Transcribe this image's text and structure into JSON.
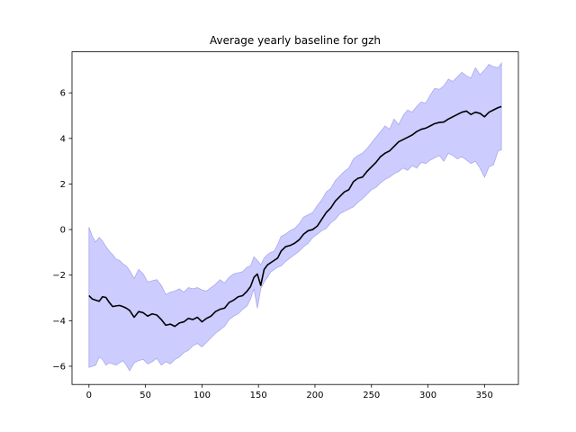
{
  "chart_data": {
    "type": "line",
    "title": "Average yearly baseline for gzh",
    "xlabel": "",
    "ylabel": "",
    "xlim": [
      -15,
      380
    ],
    "ylim": [
      -6.8,
      7.8
    ],
    "xticks": [
      0,
      50,
      100,
      150,
      200,
      250,
      300,
      350
    ],
    "yticks": [
      -6,
      -4,
      -2,
      0,
      2,
      4,
      6
    ],
    "grid": false,
    "legend": "none",
    "colors": {
      "mean_line": "#000000",
      "band_fill": "#ccccff",
      "band_edge": "#aaaaee"
    },
    "series": [
      {
        "kind": "line",
        "x": [
          0,
          3,
          6,
          9,
          12,
          15,
          18,
          21,
          24,
          27,
          30,
          33,
          36,
          40,
          44,
          48,
          52,
          56,
          60,
          64,
          68,
          72,
          76,
          80,
          84,
          88,
          92,
          96,
          100,
          104,
          108,
          112,
          116,
          120,
          124,
          128,
          132,
          136,
          140,
          143,
          146,
          149,
          152,
          155,
          158,
          161,
          164,
          167,
          170,
          174,
          178,
          182,
          186,
          190,
          194,
          198,
          202,
          206,
          210,
          214,
          218,
          222,
          226,
          230,
          234,
          238,
          242,
          246,
          250,
          254,
          258,
          262,
          266,
          270,
          274,
          278,
          282,
          286,
          290,
          294,
          298,
          302,
          306,
          310,
          314,
          318,
          322,
          326,
          330,
          334,
          338,
          342,
          346,
          350,
          354,
          358,
          362,
          365
        ],
        "values": [
          -2.9,
          -3.05,
          -3.1,
          -3.15,
          -2.95,
          -2.98,
          -3.2,
          -3.38,
          -3.35,
          -3.33,
          -3.38,
          -3.45,
          -3.55,
          -3.85,
          -3.6,
          -3.65,
          -3.8,
          -3.7,
          -3.75,
          -3.95,
          -4.2,
          -4.15,
          -4.25,
          -4.1,
          -4.05,
          -3.9,
          -3.95,
          -3.85,
          -4.05,
          -3.9,
          -3.8,
          -3.6,
          -3.5,
          -3.45,
          -3.2,
          -3.1,
          -2.95,
          -2.9,
          -2.7,
          -2.5,
          -2.1,
          -1.95,
          -2.45,
          -1.75,
          -1.55,
          -1.45,
          -1.35,
          -1.25,
          -0.95,
          -0.75,
          -0.7,
          -0.6,
          -0.45,
          -0.2,
          -0.05,
          0.0,
          0.15,
          0.45,
          0.75,
          0.95,
          1.25,
          1.45,
          1.65,
          1.75,
          2.1,
          2.25,
          2.3,
          2.55,
          2.75,
          2.95,
          3.2,
          3.35,
          3.45,
          3.65,
          3.85,
          3.95,
          4.05,
          4.15,
          4.3,
          4.4,
          4.45,
          4.55,
          4.65,
          4.7,
          4.72,
          4.85,
          4.95,
          5.05,
          5.15,
          5.2,
          5.05,
          5.15,
          5.1,
          4.95,
          5.15,
          5.25,
          5.35,
          5.4
        ]
      },
      {
        "kind": "band_upper",
        "x": [
          0,
          3,
          6,
          9,
          12,
          15,
          18,
          21,
          24,
          27,
          30,
          33,
          36,
          40,
          44,
          48,
          52,
          56,
          60,
          64,
          68,
          72,
          76,
          80,
          84,
          88,
          92,
          96,
          100,
          104,
          108,
          112,
          116,
          120,
          124,
          128,
          132,
          136,
          140,
          143,
          146,
          149,
          152,
          155,
          158,
          161,
          164,
          167,
          170,
          174,
          178,
          182,
          186,
          190,
          194,
          198,
          202,
          206,
          210,
          214,
          218,
          222,
          226,
          230,
          234,
          238,
          242,
          246,
          250,
          254,
          258,
          262,
          266,
          270,
          274,
          278,
          282,
          286,
          290,
          294,
          298,
          302,
          306,
          310,
          314,
          318,
          322,
          326,
          330,
          334,
          338,
          342,
          346,
          350,
          354,
          358,
          362,
          365
        ],
        "values": [
          0.1,
          -0.3,
          -0.55,
          -0.35,
          -0.5,
          -0.75,
          -0.95,
          -1.1,
          -1.3,
          -1.35,
          -1.5,
          -1.6,
          -1.8,
          -2.15,
          -1.75,
          -1.95,
          -2.3,
          -2.25,
          -2.2,
          -2.45,
          -2.85,
          -2.75,
          -2.7,
          -2.6,
          -2.75,
          -2.55,
          -2.6,
          -2.55,
          -2.65,
          -2.7,
          -2.55,
          -2.4,
          -2.2,
          -2.35,
          -2.1,
          -1.95,
          -1.9,
          -1.85,
          -1.65,
          -1.6,
          -1.2,
          -1.35,
          -1.55,
          -1.25,
          -1.1,
          -1.0,
          -0.95,
          -0.65,
          -0.3,
          -0.2,
          -0.05,
          0.05,
          0.25,
          0.55,
          0.65,
          0.75,
          1.05,
          1.3,
          1.65,
          1.8,
          2.15,
          2.35,
          2.55,
          2.7,
          3.1,
          3.25,
          3.35,
          3.55,
          3.8,
          4.05,
          4.3,
          4.55,
          4.4,
          4.85,
          4.6,
          5.0,
          5.25,
          5.15,
          5.4,
          5.6,
          5.55,
          5.9,
          6.2,
          6.15,
          6.3,
          6.6,
          6.5,
          6.7,
          6.9,
          6.75,
          6.65,
          7.1,
          6.8,
          7.0,
          7.25,
          7.15,
          7.1,
          7.3
        ]
      },
      {
        "kind": "band_lower",
        "x": [
          0,
          3,
          6,
          9,
          12,
          15,
          18,
          21,
          24,
          27,
          30,
          33,
          36,
          40,
          44,
          48,
          52,
          56,
          60,
          64,
          68,
          72,
          76,
          80,
          84,
          88,
          92,
          96,
          100,
          104,
          108,
          112,
          116,
          120,
          124,
          128,
          132,
          136,
          140,
          143,
          146,
          149,
          152,
          155,
          158,
          161,
          164,
          167,
          170,
          174,
          178,
          182,
          186,
          190,
          194,
          198,
          202,
          206,
          210,
          214,
          218,
          222,
          226,
          230,
          234,
          238,
          242,
          246,
          250,
          254,
          258,
          262,
          266,
          270,
          274,
          278,
          282,
          286,
          290,
          294,
          298,
          302,
          306,
          310,
          314,
          318,
          322,
          326,
          330,
          334,
          338,
          342,
          346,
          350,
          354,
          358,
          362,
          365
        ],
        "values": [
          -6.05,
          -6.0,
          -5.95,
          -5.6,
          -5.7,
          -5.95,
          -5.85,
          -5.9,
          -5.95,
          -5.85,
          -5.75,
          -5.95,
          -6.2,
          -5.85,
          -5.75,
          -5.7,
          -5.9,
          -5.8,
          -5.65,
          -5.95,
          -5.8,
          -5.9,
          -5.7,
          -5.6,
          -5.4,
          -5.3,
          -5.1,
          -5.0,
          -5.15,
          -4.95,
          -4.75,
          -4.55,
          -4.4,
          -4.25,
          -3.95,
          -3.8,
          -3.7,
          -3.5,
          -3.35,
          -3.05,
          -2.6,
          -3.45,
          -2.6,
          -2.3,
          -2.1,
          -1.85,
          -1.75,
          -1.65,
          -1.6,
          -1.4,
          -1.25,
          -1.1,
          -0.95,
          -0.75,
          -0.6,
          -0.35,
          -0.2,
          -0.05,
          0.05,
          0.3,
          0.45,
          0.7,
          0.8,
          0.9,
          1.0,
          1.2,
          1.35,
          1.55,
          1.75,
          1.85,
          2.05,
          2.2,
          2.3,
          2.45,
          2.55,
          2.7,
          2.6,
          2.8,
          2.7,
          2.95,
          2.9,
          3.05,
          3.15,
          3.25,
          3.0,
          3.35,
          3.25,
          3.1,
          3.2,
          3.05,
          2.9,
          3.0,
          2.7,
          2.3,
          2.75,
          2.85,
          3.45,
          3.5
        ]
      }
    ]
  }
}
